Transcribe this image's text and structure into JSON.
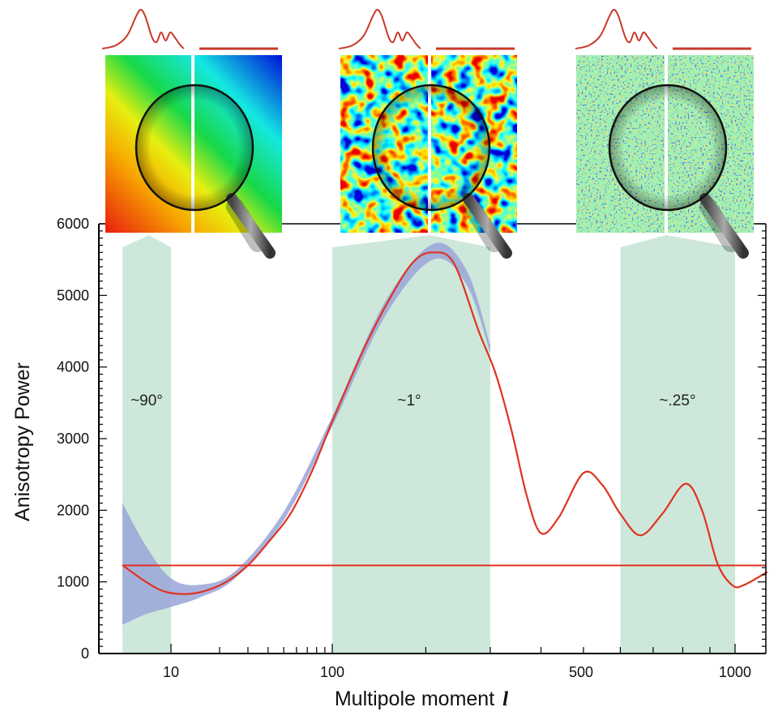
{
  "chart_data": {
    "type": "line",
    "title": "",
    "xlabel": "Multipole moment",
    "xlabel_symbol": "l",
    "ylabel": "Anisotropy Power",
    "xscale": "log below 100, compressed above 100",
    "xlim": [
      3.6,
      1140
    ],
    "ylim": [
      0,
      6000
    ],
    "x_tick_labels": [
      "10",
      "100",
      "500",
      "1000"
    ],
    "x_tick_values": [
      10,
      100,
      500,
      1000
    ],
    "x_minor_ticks": [
      20,
      30,
      40,
      50,
      60,
      70,
      80,
      90,
      200,
      300,
      400,
      600,
      700,
      800,
      900
    ],
    "y_ticks": [
      0,
      1000,
      2000,
      3000,
      4000,
      5000,
      6000
    ],
    "grid": false,
    "series": [
      {
        "kind": "curve",
        "color": "#e0331f",
        "points": [
          [
            5,
            1234
          ],
          [
            7,
            1000
          ],
          [
            9,
            870
          ],
          [
            12,
            830
          ],
          [
            16,
            870
          ],
          [
            22,
            1000
          ],
          [
            30,
            1230
          ],
          [
            40,
            1550
          ],
          [
            55,
            1950
          ],
          [
            75,
            2550
          ],
          [
            100,
            3240
          ],
          [
            130,
            4300
          ],
          [
            160,
            5050
          ],
          [
            185,
            5480
          ],
          [
            210,
            5600
          ],
          [
            240,
            5450
          ],
          [
            280,
            4500
          ],
          [
            310,
            3900
          ],
          [
            340,
            3100
          ],
          [
            370,
            2200
          ],
          [
            400,
            1680
          ],
          [
            440,
            1900
          ],
          [
            500,
            2520
          ],
          [
            550,
            2350
          ],
          [
            600,
            1950
          ],
          [
            660,
            1650
          ],
          [
            730,
            1950
          ],
          [
            810,
            2370
          ],
          [
            870,
            2000
          ],
          [
            930,
            1250
          ],
          [
            990,
            950
          ],
          [
            1040,
            960
          ],
          [
            1140,
            1140
          ]
        ]
      },
      {
        "kind": "flat-line",
        "color": "#e0331f",
        "value": 1230
      }
    ],
    "uncertainty_band": {
      "color": "#9aa5d8",
      "points": [
        [
          5,
          400,
          2100
        ],
        [
          7,
          550,
          1500
        ],
        [
          10,
          650,
          1050
        ],
        [
          15,
          780,
          960
        ],
        [
          25,
          1050,
          1150
        ],
        [
          50,
          1860,
          1980
        ],
        [
          100,
          3170,
          3310
        ],
        [
          150,
          4700,
          4900
        ],
        [
          210,
          5500,
          5720
        ],
        [
          260,
          5150,
          5350
        ],
        [
          300,
          4200,
          4300
        ]
      ]
    },
    "regions": [
      {
        "range": [
          5,
          10
        ],
        "label": "~90°"
      },
      {
        "range": [
          100,
          300
        ],
        "label": "~1°"
      },
      {
        "range": [
          600,
          1000
        ],
        "label": "~.25°"
      }
    ],
    "region_color": "#cde8da",
    "insets": [
      {
        "name": "large-scale-map",
        "icon": "magnifier-icon"
      },
      {
        "name": "degree-scale-map",
        "icon": "magnifier-icon"
      },
      {
        "name": "small-scale-map",
        "icon": "magnifier-icon"
      }
    ]
  }
}
